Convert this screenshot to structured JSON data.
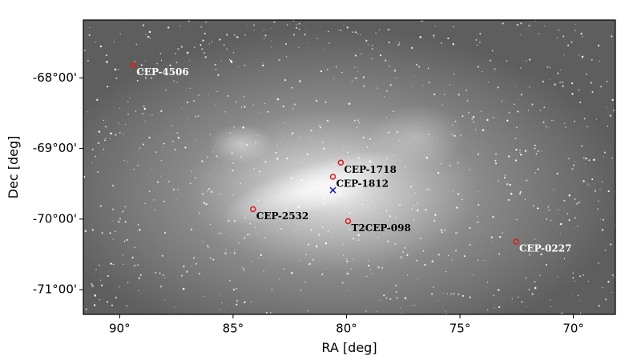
{
  "chart_data": {
    "type": "scatter",
    "xlabel": "RA [deg]",
    "ylabel": "Dec [deg]",
    "xlim": [
      91.6,
      68.15
    ],
    "ylim": [
      -71.35,
      -67.18
    ],
    "xticks": [
      {
        "value": 90,
        "label": "90°"
      },
      {
        "value": 85,
        "label": "85°"
      },
      {
        "value": 80,
        "label": "80°"
      },
      {
        "value": 75,
        "label": "75°"
      },
      {
        "value": 70,
        "label": "70°"
      }
    ],
    "yticks": [
      {
        "value": -68,
        "label": "-68°00'"
      },
      {
        "value": -69,
        "label": "-69°00'"
      },
      {
        "value": -70,
        "label": "-70°00'"
      },
      {
        "value": -71,
        "label": "-71°00'"
      }
    ],
    "series": [
      {
        "marker": "circle",
        "color": "#e0191c",
        "labels": [
          "CEP-4506",
          "CEP-1718",
          "CEP-1812",
          "CEP-2532",
          "T2CEP-098",
          "CEP-0227"
        ],
        "label_colors": [
          "#ffffff",
          "#000000",
          "#000000",
          "#000000",
          "#000000",
          "#ffffff"
        ],
        "x": [
          89.4,
          80.25,
          80.6,
          84.12,
          79.93,
          72.53
        ],
        "y": [
          -67.82,
          -69.2,
          -69.4,
          -69.86,
          -70.03,
          -70.32
        ]
      },
      {
        "marker": "x",
        "color": "#1a1acc",
        "x": [
          80.6
        ],
        "y": [
          -69.59
        ]
      }
    ]
  }
}
